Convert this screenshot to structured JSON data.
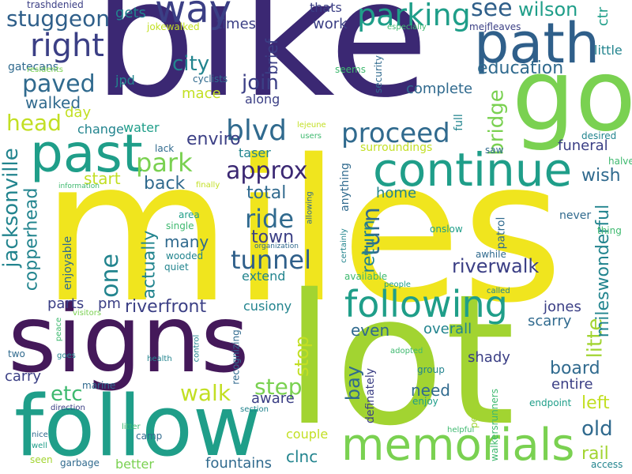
{
  "palette": {
    "dark_purple": "#44195a",
    "purple": "#472c7a",
    "indigo": "#3b3f85",
    "blue": "#306a8e",
    "slate_blue": "#2f5f8a",
    "teal_blue": "#22848e",
    "teal": "#1f9e89",
    "green": "#3eb96f",
    "light_green": "#7ad151",
    "lime": "#a2d431",
    "yellow_green": "#c2df23",
    "yellow": "#f0e51e"
  },
  "words": [
    {
      "text": "bike",
      "color": "#3b2873"
    },
    {
      "text": "miles",
      "color": "#f0e51e"
    },
    {
      "text": "lot",
      "color": "#a2d431"
    },
    {
      "text": "signs",
      "color": "#44195a"
    },
    {
      "text": "follow",
      "color": "#1f9e89"
    },
    {
      "text": "go",
      "color": "#7ad151"
    },
    {
      "text": "path",
      "color": "#2f5f8a"
    },
    {
      "text": "continue",
      "color": "#1f9e89"
    },
    {
      "text": "past",
      "color": "#1f9e89"
    },
    {
      "text": "memorials",
      "color": "#7ad151"
    },
    {
      "text": "following",
      "color": "#1f9e89"
    },
    {
      "text": "way",
      "color": "#3b3f85"
    },
    {
      "text": "right",
      "color": "#3b3f85"
    },
    {
      "text": "parking",
      "color": "#1f9e89"
    },
    {
      "text": "stuggeon",
      "color": "#2f5f8a"
    },
    {
      "text": "see",
      "color": "#2f5f8a"
    },
    {
      "text": "wilson",
      "color": "#1f9e89"
    },
    {
      "text": "proceed",
      "color": "#306a8e"
    },
    {
      "text": "approx",
      "color": "#3b2873"
    },
    {
      "text": "blvd",
      "color": "#306a8e"
    },
    {
      "text": "park",
      "color": "#7ad151"
    },
    {
      "text": "tunnel",
      "color": "#2f5f8a"
    },
    {
      "text": "ride",
      "color": "#306a8e"
    },
    {
      "text": "riverwalk",
      "color": "#3b3f85"
    },
    {
      "text": "riverfront",
      "color": "#3b3f85"
    },
    {
      "text": "jacksonville",
      "color": "#22848e"
    },
    {
      "text": "copperhead",
      "color": "#22848e"
    },
    {
      "text": "head",
      "color": "#c2df23"
    },
    {
      "text": "paved",
      "color": "#306a8e"
    },
    {
      "text": "walked",
      "color": "#306a8e"
    },
    {
      "text": "city",
      "color": "#22848e"
    },
    {
      "text": "join",
      "color": "#3b3f85"
    },
    {
      "text": "education",
      "color": "#306a8e"
    },
    {
      "text": "complete",
      "color": "#306a8e"
    },
    {
      "text": "bridge",
      "color": "#7ad151"
    },
    {
      "text": "litte",
      "color": "#a2d431"
    },
    {
      "text": "mileswonderful",
      "color": "#22848e"
    },
    {
      "text": "step",
      "color": "#7ad151"
    },
    {
      "text": "walk",
      "color": "#c2df23"
    },
    {
      "text": "etc",
      "color": "#3eb96f"
    },
    {
      "text": "turn",
      "color": "#306a8e"
    },
    {
      "text": "return",
      "color": "#22848e"
    },
    {
      "text": "one",
      "color": "#22848e"
    },
    {
      "text": "board",
      "color": "#306a8e"
    },
    {
      "text": "old",
      "color": "#306a8e"
    },
    {
      "text": "rail",
      "color": "#a2d431"
    },
    {
      "text": "left",
      "color": "#c2df23"
    },
    {
      "text": "town",
      "color": "#3b3f85"
    },
    {
      "text": "total",
      "color": "#306a8e"
    },
    {
      "text": "home",
      "color": "#22848e"
    },
    {
      "text": "enviro",
      "color": "#3b3f85"
    },
    {
      "text": "start",
      "color": "#c2df23"
    },
    {
      "text": "back",
      "color": "#306a8e"
    },
    {
      "text": "many",
      "color": "#306a8e"
    },
    {
      "text": "actually",
      "color": "#22848e"
    },
    {
      "text": "stop",
      "color": "#c2df23"
    },
    {
      "text": "bay",
      "color": "#306a8e"
    },
    {
      "text": "aware",
      "color": "#3b3f85"
    },
    {
      "text": "need",
      "color": "#306a8e"
    },
    {
      "text": "couple",
      "color": "#c2df23"
    },
    {
      "text": "clnc",
      "color": "#22848e"
    },
    {
      "text": "fountains",
      "color": "#306a8e"
    },
    {
      "text": "carry",
      "color": "#3b3f85"
    },
    {
      "text": "funeral",
      "color": "#3b3f85"
    },
    {
      "text": "wish",
      "color": "#306a8e"
    },
    {
      "text": "jones",
      "color": "#3b3f85"
    },
    {
      "text": "scarry",
      "color": "#306a8e"
    },
    {
      "text": "entire",
      "color": "#3b3f85"
    },
    {
      "text": "shady",
      "color": "#3b3f85"
    },
    {
      "text": "even",
      "color": "#306a8e"
    },
    {
      "text": "overall",
      "color": "#22848e"
    },
    {
      "text": "extend",
      "color": "#22848e"
    },
    {
      "text": "cusiony",
      "color": "#22848e"
    },
    {
      "text": "parts",
      "color": "#3b3f85"
    },
    {
      "text": "pm",
      "color": "#3b3f85"
    },
    {
      "text": "times",
      "color": "#3b3f85"
    },
    {
      "text": "gets",
      "color": "#22848e"
    },
    {
      "text": "brief",
      "color": "#3b3f85"
    },
    {
      "text": "work",
      "color": "#3b3f85"
    },
    {
      "text": "thats",
      "color": "#3b3f85"
    },
    {
      "text": "along",
      "color": "#3b3f85"
    },
    {
      "text": "mace",
      "color": "#c2df23"
    },
    {
      "text": "taser",
      "color": "#22848e"
    },
    {
      "text": "water",
      "color": "#1f9e89"
    },
    {
      "text": "change",
      "color": "#22848e"
    },
    {
      "text": "day",
      "color": "#c2df23"
    },
    {
      "text": "jpd",
      "color": "#22848e"
    },
    {
      "text": "cyclists",
      "color": "#306a8e"
    },
    {
      "text": "gatecans",
      "color": "#306a8e"
    },
    {
      "text": "trashdenied",
      "color": "#3b3f85"
    },
    {
      "text": "jokewalked",
      "color": "#c2df23"
    },
    {
      "text": "little",
      "color": "#22848e"
    },
    {
      "text": "ctr",
      "color": "#1f9e89"
    },
    {
      "text": "mejfleaves",
      "color": "#3b3f85"
    },
    {
      "text": "especially",
      "color": "#3eb96f"
    },
    {
      "text": "residents",
      "color": "#7ad151"
    },
    {
      "text": "seems",
      "color": "#3eb96f"
    },
    {
      "text": "security",
      "color": "#306a8e"
    },
    {
      "text": "full",
      "color": "#22848e"
    },
    {
      "text": "lejeune",
      "color": "#c2df23"
    },
    {
      "text": "users",
      "color": "#3eb96f"
    },
    {
      "text": "surroundings",
      "color": "#c2df23"
    },
    {
      "text": "desired",
      "color": "#22848e"
    },
    {
      "text": "saw",
      "color": "#306a8e"
    },
    {
      "text": "halve",
      "color": "#3eb96f"
    },
    {
      "text": "anything",
      "color": "#306a8e"
    },
    {
      "text": "lack",
      "color": "#306a8e"
    },
    {
      "text": "information",
      "color": "#3eb96f"
    },
    {
      "text": "finally",
      "color": "#c2df23"
    },
    {
      "text": "area",
      "color": "#1f9e89"
    },
    {
      "text": "single",
      "color": "#3eb96f"
    },
    {
      "text": "wooded",
      "color": "#22848e"
    },
    {
      "text": "quiet",
      "color": "#22848e"
    },
    {
      "text": "allowing",
      "color": "#306a8e"
    },
    {
      "text": "organization",
      "color": "#306a8e"
    },
    {
      "text": "certainly",
      "color": "#22848e"
    },
    {
      "text": "onslow",
      "color": "#1f9e89"
    },
    {
      "text": "patrol",
      "color": "#306a8e"
    },
    {
      "text": "awhile",
      "color": "#306a8e"
    },
    {
      "text": "never",
      "color": "#306a8e"
    },
    {
      "text": "thing",
      "color": "#3eb96f"
    },
    {
      "text": "available",
      "color": "#3eb96f"
    },
    {
      "text": "people",
      "color": "#1f9e89"
    },
    {
      "text": "called",
      "color": "#22848e"
    },
    {
      "text": "enjoyable",
      "color": "#306a8e"
    },
    {
      "text": "visitors",
      "color": "#7ad151"
    },
    {
      "text": "peace",
      "color": "#3eb96f"
    },
    {
      "text": "goes",
      "color": "#22848e"
    },
    {
      "text": "two",
      "color": "#306a8e"
    },
    {
      "text": "health",
      "color": "#22848e"
    },
    {
      "text": "control",
      "color": "#22848e"
    },
    {
      "text": "recognizing",
      "color": "#306a8e"
    },
    {
      "text": "adopted",
      "color": "#3eb96f"
    },
    {
      "text": "group",
      "color": "#22848e"
    },
    {
      "text": "enjoy",
      "color": "#1f9e89"
    },
    {
      "text": "definately",
      "color": "#3b3f85"
    },
    {
      "text": "pedestrian",
      "color": "#a2d431"
    },
    {
      "text": "walkersrunners",
      "color": "#3eb96f"
    },
    {
      "text": "endpoint",
      "color": "#1f9e89"
    },
    {
      "text": "helpful",
      "color": "#3eb96f"
    },
    {
      "text": "access",
      "color": "#22848e"
    },
    {
      "text": "marine",
      "color": "#306a8e"
    },
    {
      "text": "direction",
      "color": "#3b3f85"
    },
    {
      "text": "litter",
      "color": "#3eb96f"
    },
    {
      "text": "camp",
      "color": "#306a8e"
    },
    {
      "text": "section",
      "color": "#22848e"
    },
    {
      "text": "better",
      "color": "#7ad151"
    },
    {
      "text": "nice",
      "color": "#306a8e"
    },
    {
      "text": "well",
      "color": "#1f9e89"
    },
    {
      "text": "seen",
      "color": "#a2d431"
    },
    {
      "text": "garbage",
      "color": "#306a8e"
    }
  ]
}
